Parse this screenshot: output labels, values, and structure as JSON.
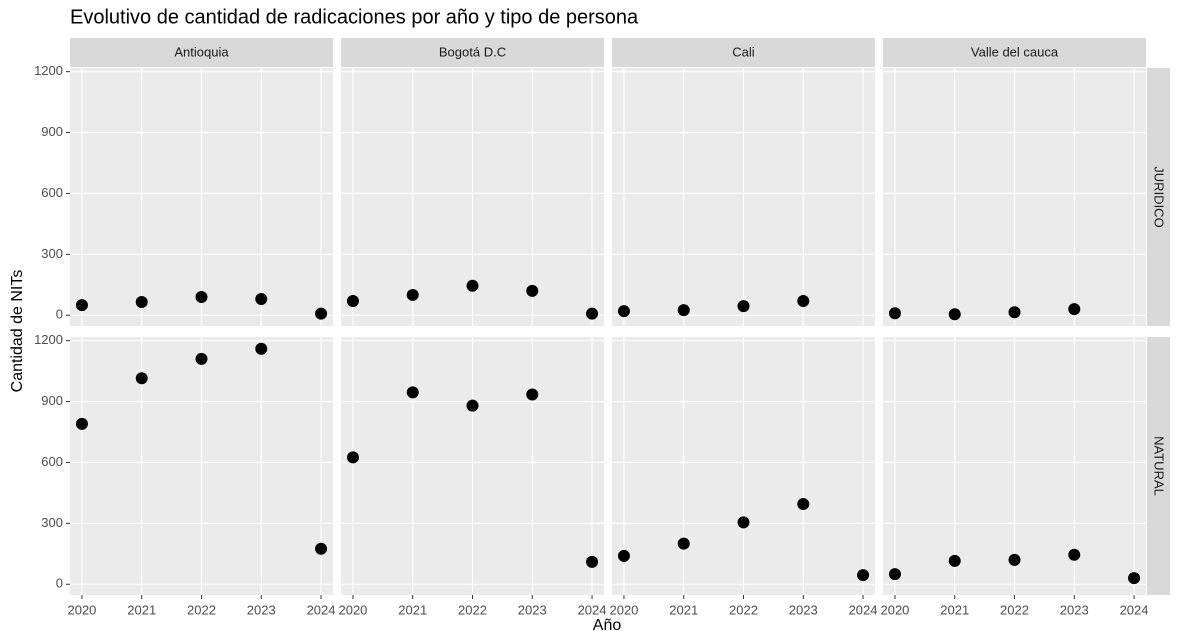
{
  "chart_data": {
    "type": "scatter",
    "title": "Evolutivo de cantidad de radicaciones por año y tipo de persona",
    "x_label": "Año",
    "y_label": "Cantidad de NITs",
    "color": "#000000",
    "grid": true,
    "xlim": [
      2019.8,
      2024.2
    ],
    "xticks": [
      2020,
      2021,
      2022,
      2023,
      2024
    ],
    "ylim": [
      -53,
      1218
    ],
    "yticks": [
      0,
      300,
      600,
      900,
      1200
    ],
    "facet_columns": [
      "Antioquia",
      "Bogotá D.C",
      "Cali",
      "Valle del cauca"
    ],
    "facet_rows": [
      "JURIDICO",
      "NATURAL"
    ],
    "panels": [
      {
        "x": [
          2020,
          2021,
          2022,
          2023,
          2024
        ],
        "values": [
          50,
          65,
          90,
          80,
          8
        ]
      },
      {
        "x": [
          2020,
          2021,
          2022,
          2023,
          2024
        ],
        "values": [
          70,
          100,
          145,
          120,
          8
        ]
      },
      {
        "x": [
          2020,
          2021,
          2022,
          2023
        ],
        "values": [
          20,
          25,
          45,
          70
        ]
      },
      {
        "x": [
          2020,
          2021,
          2022,
          2023
        ],
        "values": [
          10,
          5,
          15,
          30
        ]
      },
      {
        "x": [
          2020,
          2021,
          2022,
          2023,
          2024
        ],
        "values": [
          790,
          1015,
          1110,
          1160,
          175
        ]
      },
      {
        "x": [
          2020,
          2021,
          2022,
          2023,
          2024
        ],
        "values": [
          625,
          945,
          880,
          935,
          110
        ]
      },
      {
        "x": [
          2020,
          2021,
          2022,
          2023,
          2024
        ],
        "values": [
          140,
          200,
          305,
          395,
          45
        ]
      },
      {
        "x": [
          2020,
          2021,
          2022,
          2023,
          2024
        ],
        "values": [
          50,
          115,
          120,
          145,
          30
        ]
      }
    ]
  }
}
